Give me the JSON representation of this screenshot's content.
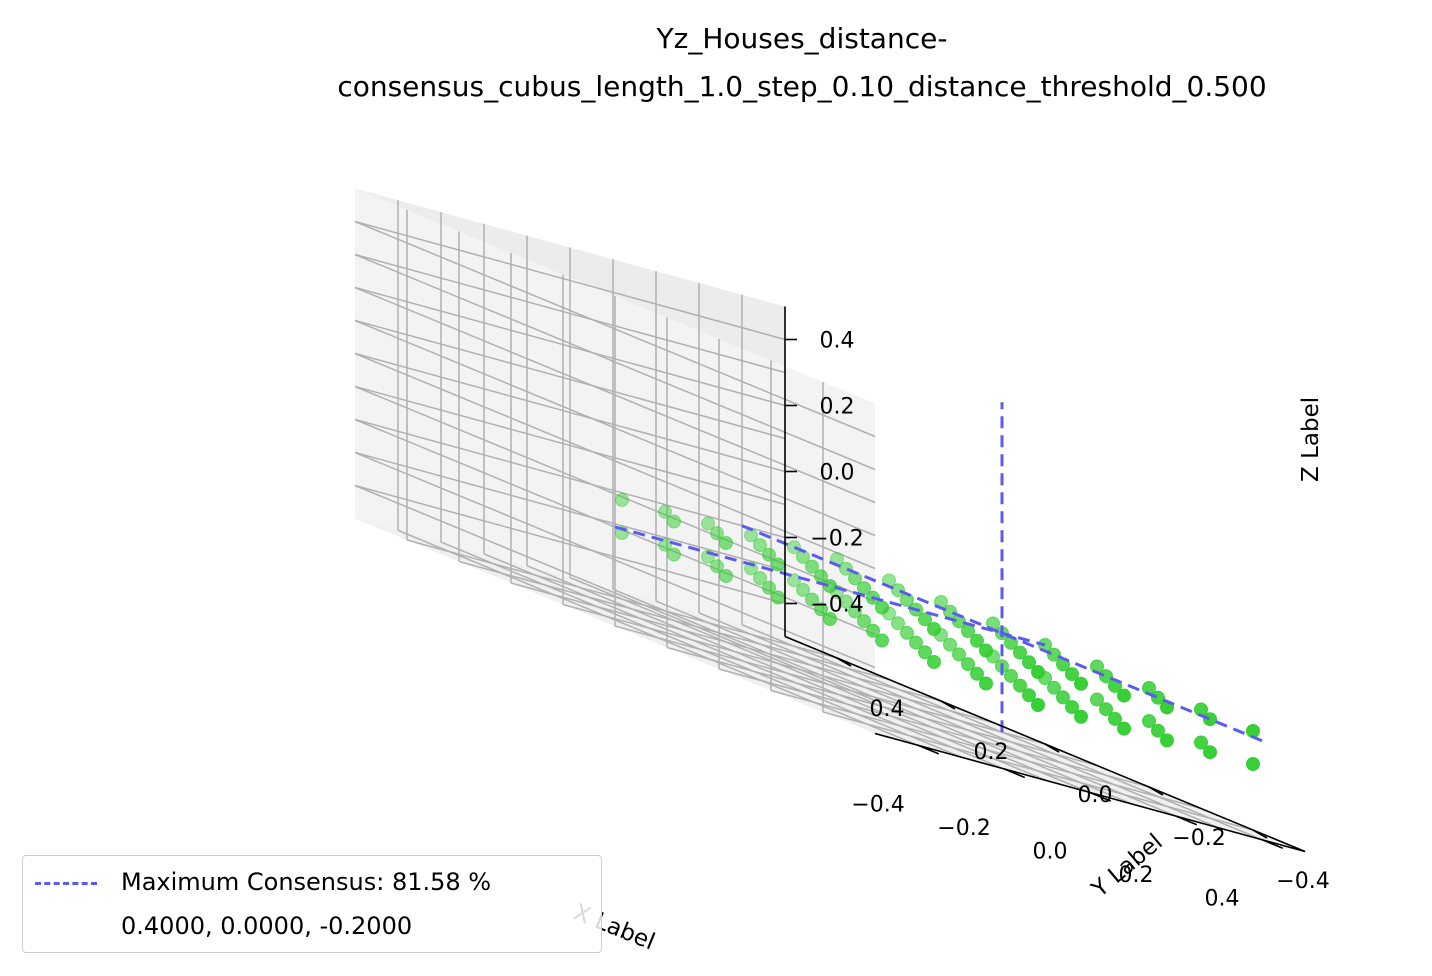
{
  "chart_data": {
    "type": "scatter",
    "title_line1": "Yz_Houses_distance-",
    "title_line2": "consensus_cubus_length_1.0_step_0.10_distance_threshold_0.500",
    "xlabel": "X Label",
    "ylabel": "Y Label",
    "zlabel": "Z Label",
    "xlim": [
      -0.5,
      0.5
    ],
    "ylim": [
      -0.5,
      0.5
    ],
    "zlim": [
      -0.5,
      0.5
    ],
    "x_ticks": [
      "−0.4",
      "−0.2",
      "0.0",
      "0.2",
      "0.4"
    ],
    "y_ticks": [
      "−0.4",
      "−0.2",
      "0.0",
      "0.2",
      "0.4"
    ],
    "z_ticks": [
      "−0.4",
      "−0.2",
      "0.0",
      "0.2",
      "0.4"
    ],
    "grid": true,
    "point_color": "#2ecc2e",
    "line_color": "#5b5bf0",
    "series": [
      {
        "marker": "circle",
        "points_note": "grid of points at step 0.1",
        "x_range": [
          0.0,
          0.5
        ],
        "y_range": [
          -0.4,
          0.4
        ],
        "z_range": [
          -0.3,
          -0.2
        ],
        "step": 0.1
      }
    ],
    "max_point": {
      "x": 0.4,
      "y": 0.0,
      "z": -0.2
    },
    "legend": {
      "placement": "lower-left",
      "line1": "Maximum Consensus: 81.58 %",
      "line2": "0.4000, 0.0000, -0.2000"
    }
  }
}
